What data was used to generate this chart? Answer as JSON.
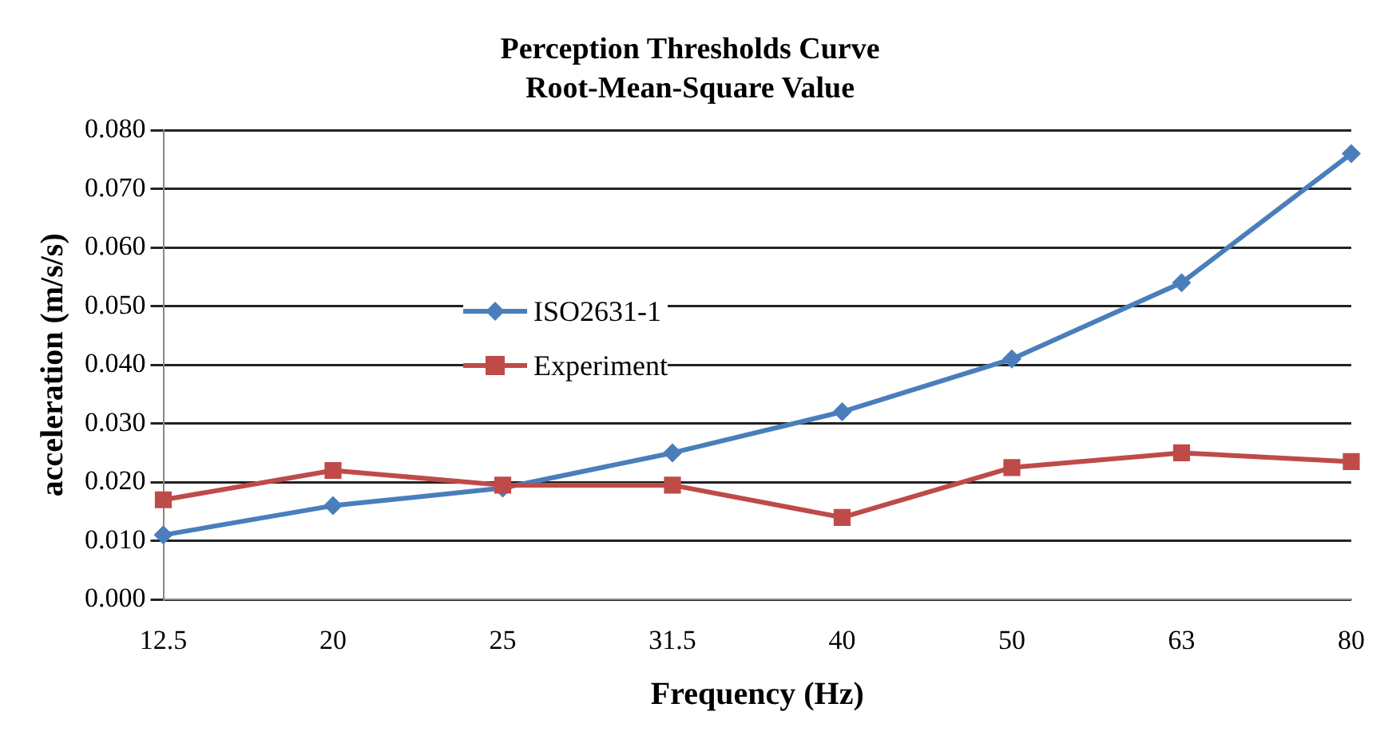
{
  "chart_data": {
    "type": "line",
    "title": "Perception Thresholds Curve",
    "subtitle": "Root-Mean-Square Value",
    "xlabel": "Frequency (Hz)",
    "ylabel": "acceleration (m/s/s)",
    "categories": [
      "12.5",
      "20",
      "25",
      "31.5",
      "40",
      "50",
      "63",
      "80"
    ],
    "series": [
      {
        "name": "ISO2631-1",
        "color": "#4a7ebb",
        "marker": "diamond",
        "values": [
          0.011,
          0.016,
          0.019,
          0.025,
          0.032,
          0.041,
          0.054,
          0.076
        ]
      },
      {
        "name": "Experiment",
        "color": "#be4b48",
        "marker": "square",
        "values": [
          0.017,
          0.022,
          0.0195,
          0.0195,
          0.014,
          0.0225,
          0.025,
          0.0235
        ]
      }
    ],
    "ylim": [
      0,
      0.08
    ],
    "yticks": [
      {
        "value": 0,
        "label": "0.000"
      },
      {
        "value": 0.01,
        "label": "0.010"
      },
      {
        "value": 0.02,
        "label": "0.020"
      },
      {
        "value": 0.03,
        "label": "0.030"
      },
      {
        "value": 0.04,
        "label": "0.040"
      },
      {
        "value": 0.05,
        "label": "0.050"
      },
      {
        "value": 0.06,
        "label": "0.060"
      },
      {
        "value": 0.07,
        "label": "0.070"
      },
      {
        "value": 0.08,
        "label": "0.080"
      }
    ],
    "grid": "y",
    "legend": "center",
    "line_style": "solid"
  }
}
